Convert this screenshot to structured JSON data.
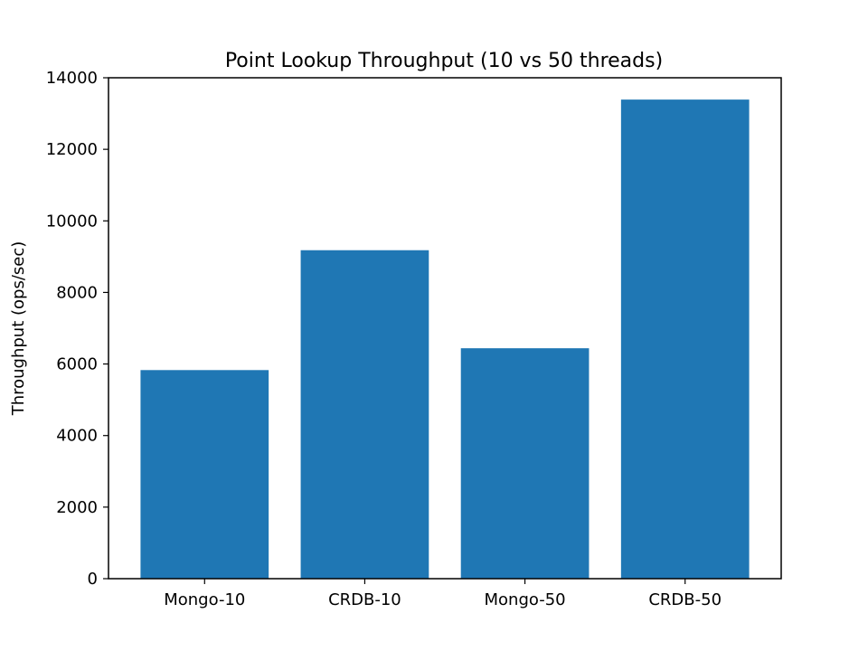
{
  "chart_data": {
    "type": "bar",
    "title": "Point Lookup Throughput (10 vs 50 threads)",
    "xlabel": "",
    "ylabel": "Throughput (ops/sec)",
    "categories": [
      "Mongo-10",
      "CRDB-10",
      "Mongo-50",
      "CRDB-50"
    ],
    "values": [
      5830,
      9180,
      6440,
      13390
    ],
    "ylim": [
      0,
      14000
    ],
    "yticks": [
      "0",
      "2000",
      "4000",
      "6000",
      "8000",
      "10000",
      "12000",
      "14000"
    ],
    "bar_color": "#1f77b4",
    "grid": false,
    "legend": "none"
  }
}
